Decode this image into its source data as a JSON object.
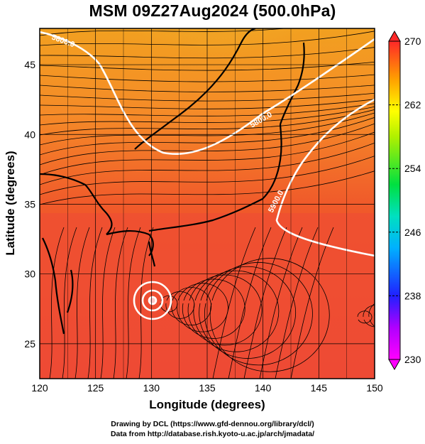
{
  "title": "MSM 09Z27Aug2024 (500.0hPa)",
  "xlabel": "Longitude (degrees)",
  "ylabel": "Latitude  (degrees)",
  "x_ticks": [
    120,
    125,
    130,
    135,
    140,
    145,
    150
  ],
  "y_ticks": [
    25,
    30,
    35,
    40,
    45
  ],
  "x_range": [
    120,
    150
  ],
  "y_range": [
    22.5,
    47.6
  ],
  "colorbar": {
    "ticks": [
      230,
      238,
      246,
      254,
      262,
      270
    ],
    "range": [
      230,
      270
    ],
    "colors": [
      "#ff00ff",
      "#2020ff",
      "#00c8ff",
      "#00e060",
      "#b0f000",
      "#ffff00",
      "#ffa000",
      "#ff3030"
    ]
  },
  "contours": [
    {
      "label": "5600.0"
    },
    {
      "label": "5800.0"
    },
    {
      "label": "5900.0"
    }
  ],
  "credits": {
    "line1": "Drawing by DCL (https://www.gfd-dennou.org/library/dcl/)",
    "line2": "Data from http://database.rish.kyoto-u.ac.jp/arch/jmadata/"
  }
}
